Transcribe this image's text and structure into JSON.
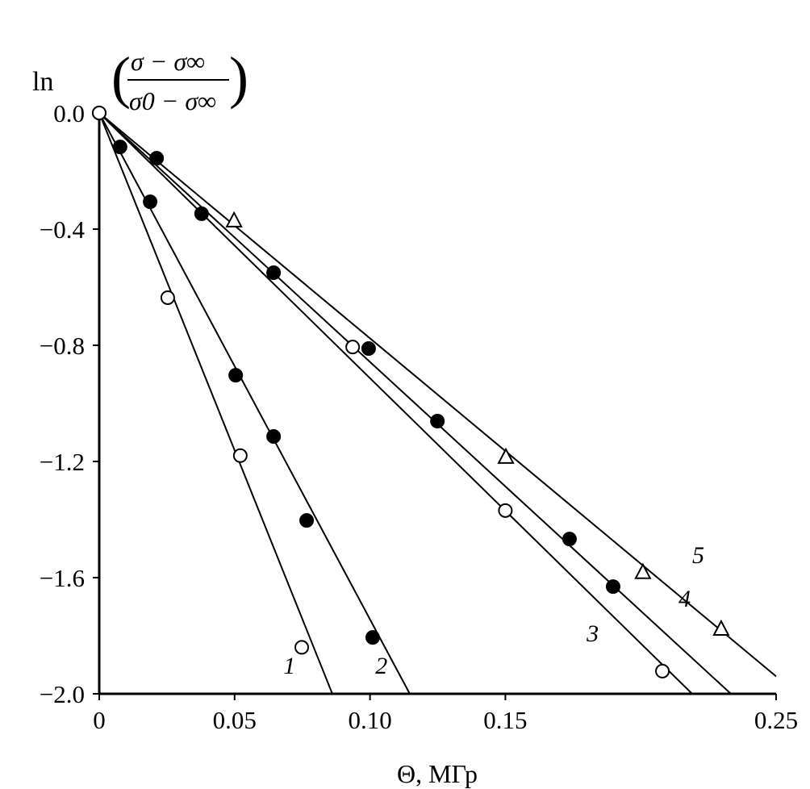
{
  "chart_data": {
    "type": "scatter",
    "title": "",
    "xlabel": "Θ, МГр",
    "ylabel": {
      "prefix": "ln",
      "numerator": "σ − σ∞",
      "denominator": "σ0 − σ∞"
    },
    "xlim": [
      0,
      0.25
    ],
    "ylim": [
      -2.0,
      0.0
    ],
    "xticks": [
      "0",
      "0.05",
      "0.10",
      "0.15",
      "0.25"
    ],
    "xtick_values": [
      0,
      0.05,
      0.1,
      0.15,
      0.25
    ],
    "yticks": [
      "0.0",
      "−0.4",
      "−0.8",
      "−1.2",
      "−1.6",
      "−2.0"
    ],
    "ytick_values": [
      0,
      -0.4,
      -0.8,
      -1.2,
      -1.6,
      -2.0
    ],
    "grid": false,
    "series": [
      {
        "name": "1",
        "marker": "open-circle",
        "points": [
          [
            0,
            0
          ],
          [
            0.0253,
            -0.636
          ],
          [
            0.0521,
            -1.18
          ],
          [
            0.0748,
            -1.84
          ]
        ],
        "fit_line": [
          [
            0,
            0
          ],
          [
            0.0861,
            -2.0
          ]
        ],
        "label_at": [
          0.068,
          -1.93
        ]
      },
      {
        "name": "2",
        "marker": "filled-circle",
        "points": [
          [
            0.0077,
            -0.117
          ],
          [
            0.0188,
            -0.306
          ],
          [
            0.0504,
            -0.903
          ],
          [
            0.0644,
            -1.114
          ],
          [
            0.0766,
            -1.403
          ],
          [
            0.101,
            -1.806
          ]
        ],
        "fit_line": [
          [
            0,
            0
          ],
          [
            0.1147,
            -2.0
          ]
        ],
        "label_at": [
          0.102,
          -1.93
        ]
      },
      {
        "name": "3",
        "marker": "open-circle",
        "points": [
          [
            0,
            0
          ],
          [
            0.0936,
            -0.806
          ],
          [
            0.15,
            -1.369
          ],
          [
            0.208,
            -1.922
          ]
        ],
        "fit_line": [
          [
            0,
            0
          ],
          [
            0.219,
            -2.0
          ]
        ],
        "label_at": [
          0.18,
          -1.82
        ]
      },
      {
        "name": "4",
        "marker": "filled-circle",
        "points": [
          [
            0.0212,
            -0.156
          ],
          [
            0.0378,
            -0.347
          ],
          [
            0.0644,
            -0.55
          ],
          [
            0.0995,
            -0.811
          ],
          [
            0.1249,
            -1.061
          ],
          [
            0.1737,
            -1.467
          ],
          [
            0.1898,
            -1.631
          ]
        ],
        "fit_line": [
          [
            0,
            0
          ],
          [
            0.2333,
            -2.0
          ]
        ],
        "label_at": [
          0.214,
          -1.7
        ]
      },
      {
        "name": "5",
        "marker": "open-triangle",
        "points": [
          [
            0.0498,
            -0.369
          ],
          [
            0.1502,
            -1.183
          ],
          [
            0.2008,
            -1.58
          ],
          [
            0.2297,
            -1.775
          ]
        ],
        "fit_line": [
          [
            0,
            0
          ],
          [
            0.25,
            -1.94
          ]
        ],
        "label_at": [
          0.219,
          -1.55
        ]
      }
    ]
  }
}
